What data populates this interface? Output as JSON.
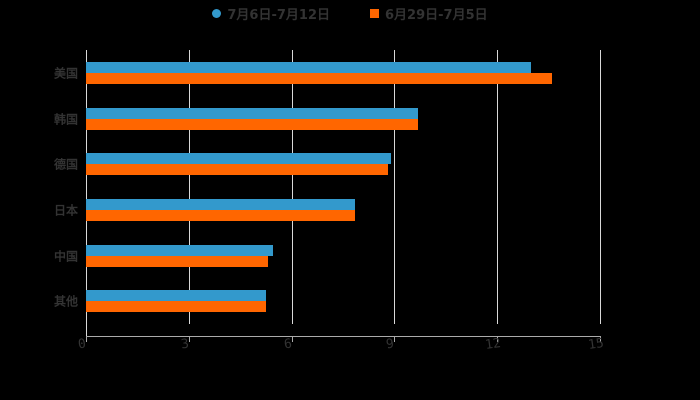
{
  "chart_data": {
    "type": "bar",
    "orientation": "horizontal",
    "title": "",
    "xlabel": "",
    "ylabel": "",
    "categories": [
      "美国",
      "韩国",
      "德国",
      "日本",
      "中国",
      "其他"
    ],
    "series": [
      {
        "name": "7月6日-7月12日",
        "color": "#3399cc",
        "values": [
          13.0,
          9.7,
          8.9,
          7.85,
          5.45,
          5.25
        ]
      },
      {
        "name": "6月29日-7月5日",
        "color": "#ff6600",
        "values": [
          13.6,
          9.7,
          8.8,
          7.85,
          5.3,
          5.25
        ]
      }
    ],
    "xlim": [
      0,
      15
    ],
    "x_ticks": [
      "0",
      "3",
      "6",
      "9",
      "12",
      "15"
    ],
    "grid": true,
    "legend_position": "top"
  },
  "legend": {
    "items": [
      {
        "label": "7月6日-7月12日",
        "color": "#3399cc",
        "shape": "circle"
      },
      {
        "label": "6月29日-7月5日",
        "color": "#ff6600",
        "shape": "square"
      }
    ]
  }
}
